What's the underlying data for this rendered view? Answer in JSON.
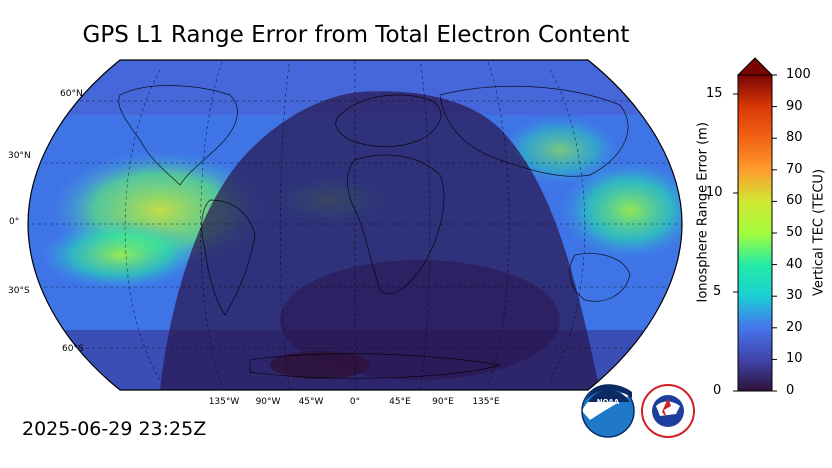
{
  "title": "GPS L1 Range Error from Total Electron Content",
  "timestamp": "2025-06-29 23:25Z",
  "map": {
    "lat_labels": [
      "60°N",
      "30°N",
      "0°",
      "30°S",
      "60°S"
    ],
    "lon_labels": [
      "135°W",
      "90°W",
      "45°W",
      "0°",
      "45°E",
      "90°E",
      "135°E"
    ]
  },
  "colorbar": {
    "right_axis_label": "Vertical TEC (TECU)",
    "left_axis_label": "Ionosphere Range Error (m)",
    "right_ticks": [
      "0",
      "10",
      "20",
      "30",
      "40",
      "50",
      "60",
      "70",
      "80",
      "90",
      "100"
    ],
    "left_ticks": [
      "0",
      "5",
      "10",
      "15"
    ],
    "colors": [
      "#30123b",
      "#4145ab",
      "#4675ed",
      "#39a2fc",
      "#1bcfd4",
      "#24eca6",
      "#61fc6c",
      "#a4fc3b",
      "#d1e834",
      "#f3c63a",
      "#fe9b2d",
      "#f36315",
      "#d93806",
      "#b11901",
      "#7a0402"
    ]
  },
  "logos": {
    "noaa_text": "NOAA",
    "nws_text": "NATIONAL WEATHER SERVICE"
  }
}
